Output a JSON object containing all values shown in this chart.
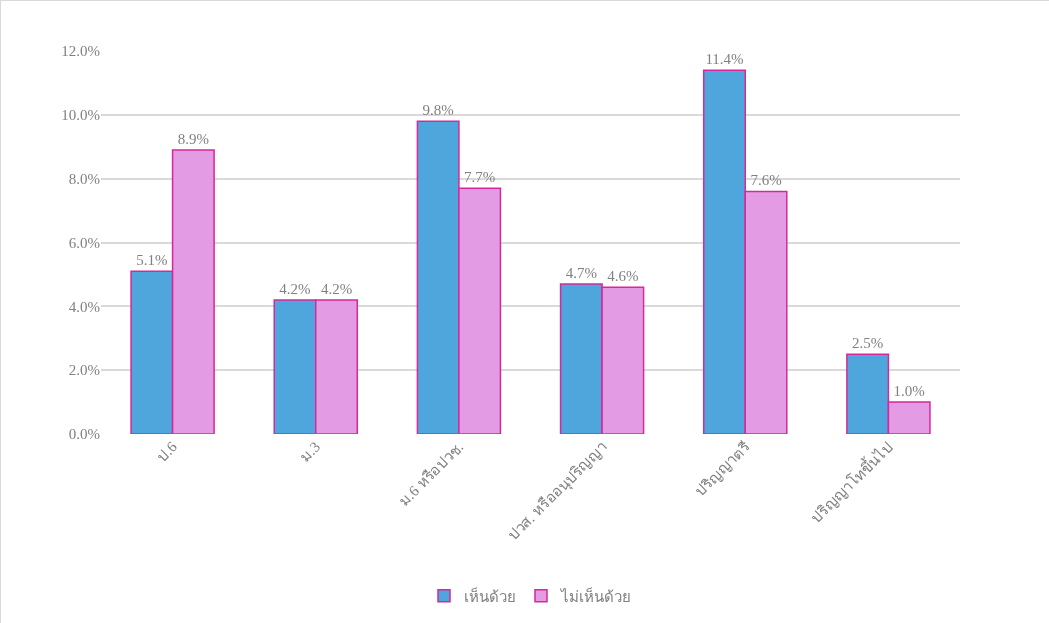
{
  "chart_data": {
    "type": "bar",
    "categories": [
      "ป.6",
      "ม.3",
      "ม.6 หรือปวช.",
      "ปวส. หรืออนุปริญญา",
      "ปริญญาตรี",
      "ปริญญาโทขึ้นไป"
    ],
    "series": [
      {
        "name": "เห็นด้วย",
        "color": "#4ea6dc",
        "values": [
          5.1,
          4.2,
          9.8,
          4.7,
          11.4,
          2.5
        ],
        "value_labels": [
          "5.1%",
          "4.2%",
          "9.8%",
          "4.7%",
          "11.4%",
          "2.5%"
        ]
      },
      {
        "name": "ไม่เห็นด้วย",
        "color": "#e39be3",
        "values": [
          8.9,
          4.2,
          7.7,
          4.6,
          7.6,
          1.0
        ],
        "value_labels": [
          "8.9%",
          "4.2%",
          "7.7%",
          "4.6%",
          "7.6%",
          "1.0%"
        ]
      }
    ],
    "ylim": [
      0,
      12
    ],
    "yticks": [
      {
        "value": 0,
        "label": "0.0%"
      },
      {
        "value": 2,
        "label": "2.0%"
      },
      {
        "value": 4,
        "label": "4.0%"
      },
      {
        "value": 6,
        "label": "6.0%"
      },
      {
        "value": 8,
        "label": "8.0%"
      },
      {
        "value": 10,
        "label": "10.0%"
      },
      {
        "value": 12,
        "label": "12.0%"
      }
    ],
    "grid": "y",
    "legend": "bottom"
  }
}
